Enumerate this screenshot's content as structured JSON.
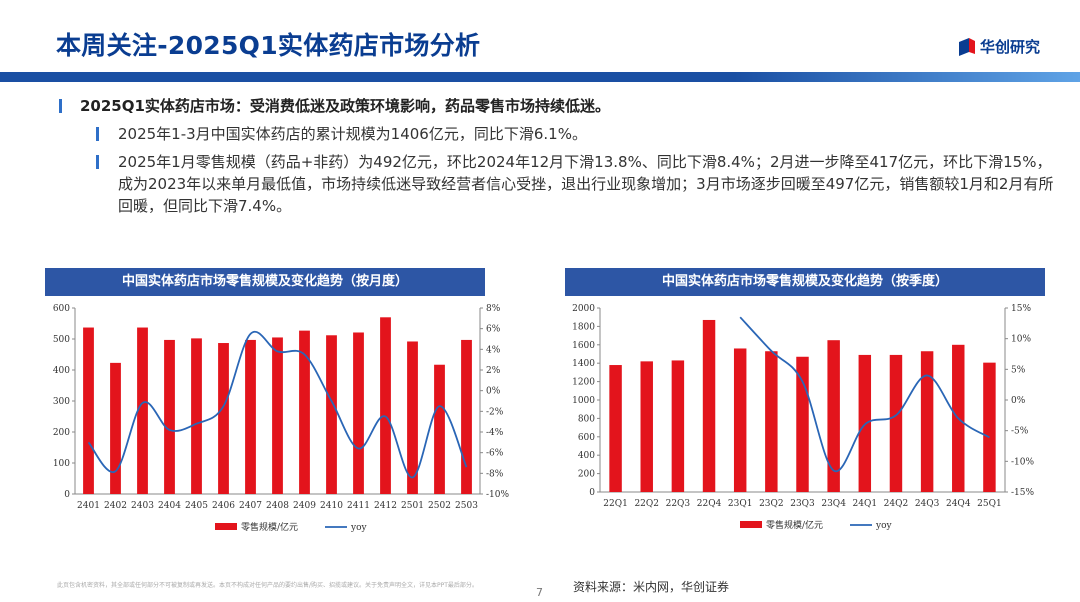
{
  "header": {
    "title": "本周关注-2025Q1实体药店市场分析",
    "logo_text": "华创研究"
  },
  "bullets": {
    "main": "2025Q1实体药店市场：受消费低迷及政策环境影响，药品零售市场持续低迷。",
    "sub": [
      "2025年1-3月中国实体药店的累计规模为1406亿元，同比下滑6.1%。",
      "2025年1月零售规模（药品+非药）为492亿元，环比2024年12月下滑13.8%、同比下滑8.4%；2月进一步降至417亿元，环比下滑15%，成为2023年以来单月最低值，市场持续低迷导致经营者信心受挫，退出行业现象增加；3月市场逐步回暖至497亿元，销售额较1月和2月有所回暖，但同比下滑7.4%。"
    ]
  },
  "chart_data": [
    {
      "type": "bar",
      "title": "中国实体药店市场零售规模及变化趋势（按月度）",
      "categories": [
        "2401",
        "2402",
        "2403",
        "2404",
        "2405",
        "2406",
        "2407",
        "2408",
        "2409",
        "2410",
        "2411",
        "2412",
        "2501",
        "2502",
        "2503"
      ],
      "series": [
        {
          "name": "零售规模/亿元",
          "type": "bar",
          "axis": "left",
          "values": [
            537,
            423,
            537,
            497,
            502,
            487,
            497,
            505,
            527,
            512,
            521,
            570,
            492,
            417,
            497
          ]
        },
        {
          "name": "yoy",
          "type": "line",
          "axis": "right",
          "values": [
            -5.0,
            -7.8,
            -1.2,
            -3.8,
            -3.2,
            -1.5,
            5.5,
            3.8,
            3.5,
            -1.0,
            -5.6,
            -2.5,
            -8.4,
            -1.5,
            -7.4
          ]
        }
      ],
      "ylim_left": [
        0,
        600
      ],
      "yticks_left": [
        "0",
        "100",
        "200",
        "300",
        "400",
        "500",
        "600"
      ],
      "ylim_right": [
        -10,
        8
      ],
      "yticks_right": [
        "-10%",
        "-8%",
        "-6%",
        "-4%",
        "-2%",
        "0%",
        "2%",
        "4%",
        "6%",
        "8%"
      ],
      "legend": [
        "零售规模/亿元",
        "yoy"
      ],
      "legend_position": "bottom",
      "colors": {
        "bar": "#e3141c",
        "line": "#2a66b6"
      }
    },
    {
      "type": "bar",
      "title": "中国实体药店市场零售规模及变化趋势（按季度）",
      "categories": [
        "22Q1",
        "22Q2",
        "22Q3",
        "22Q4",
        "23Q1",
        "23Q2",
        "23Q3",
        "23Q4",
        "24Q1",
        "24Q2",
        "24Q3",
        "24Q4",
        "25Q1"
      ],
      "series": [
        {
          "name": "零售规模/亿元",
          "type": "bar",
          "axis": "left",
          "values": [
            1380,
            1420,
            1430,
            1870,
            1560,
            1530,
            1470,
            1650,
            1490,
            1490,
            1530,
            1600,
            1406
          ]
        },
        {
          "name": "yoy",
          "type": "line",
          "axis": "right",
          "values": [
            null,
            null,
            null,
            null,
            13.5,
            8.0,
            3.0,
            -11.5,
            -4.0,
            -2.5,
            4.0,
            -3.0,
            -6.1
          ]
        }
      ],
      "ylim_left": [
        0,
        2000
      ],
      "yticks_left": [
        "0",
        "200",
        "400",
        "600",
        "800",
        "1000",
        "1200",
        "1400",
        "1600",
        "1800",
        "2000"
      ],
      "ylim_right": [
        -15,
        15
      ],
      "yticks_right": [
        "-15%",
        "-10%",
        "-5%",
        "0%",
        "5%",
        "10%",
        "15%"
      ],
      "legend": [
        "零售规模/亿元",
        "yoy"
      ],
      "legend_position": "bottom",
      "colors": {
        "bar": "#e3141c",
        "line": "#2a66b6"
      }
    }
  ],
  "footer": {
    "disclaimer": "此页包含机密资料，其全部或任何部分不可被复制或再发送。本页不构成对任何产品的要约出售/购买、招揽或建议。关于免责声明全文，详见本PPT最后部分。",
    "page_number": "7",
    "source": "资料来源：米内网，华创证券"
  }
}
